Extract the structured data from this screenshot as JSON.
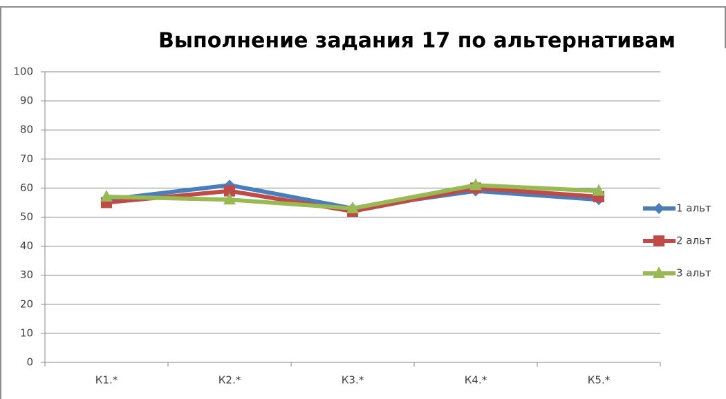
{
  "chart_data": {
    "type": "line",
    "title": "Выполнение задания 17 по альтернативам",
    "categories": [
      "К1.*",
      "К2.*",
      "К3.*",
      "К4.*",
      "К5.*"
    ],
    "series": [
      {
        "name": "1 альт",
        "color": "#4a7ebb",
        "marker": "diamond",
        "values": [
          56,
          61,
          53,
          59,
          56
        ]
      },
      {
        "name": "2 альт",
        "color": "#be4b48",
        "marker": "square",
        "values": [
          55,
          59,
          52,
          60,
          57
        ]
      },
      {
        "name": "3 альт",
        "color": "#98b954",
        "marker": "triangle",
        "values": [
          57,
          56,
          53,
          61,
          59
        ]
      }
    ],
    "ylim": [
      0,
      100
    ],
    "yticks": [
      0,
      10,
      20,
      30,
      40,
      50,
      60,
      70,
      80,
      90,
      100
    ],
    "grid": true,
    "legend": "right"
  }
}
